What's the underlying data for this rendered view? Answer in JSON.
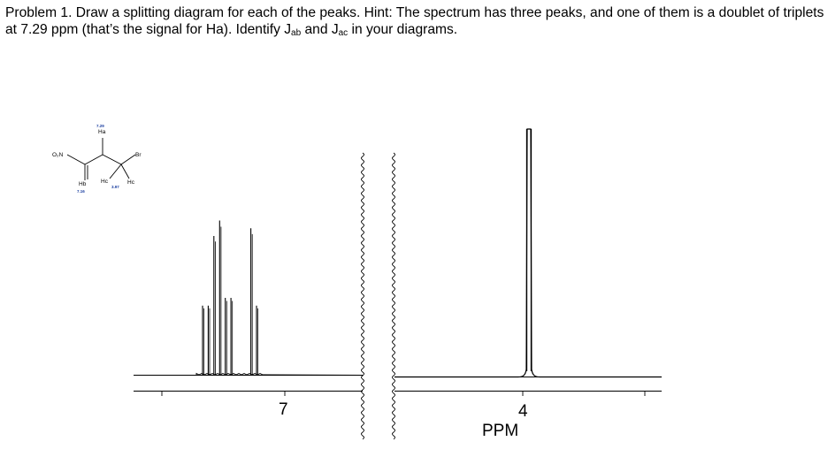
{
  "problem": {
    "text_before_jab": "Problem 1. Draw a splitting diagram for each of the peaks. Hint: The spectrum has three peaks, and one of them is a doublet of triplets at 7.29 ppm (that’s the signal for Ha). Identify J",
    "jab_sub": "ab",
    "text_between": " and J",
    "jac_sub": "ac",
    "text_after": " in your diagrams."
  },
  "molecule": {
    "nitro_label": "O₂N",
    "bromo_label": "Br",
    "ha_shift": "7.29",
    "ha_label": "Ha",
    "hb_label": "Hb",
    "hb_shift": "7.16",
    "hc_left_label": "Hc",
    "hc_right_label": "Hc",
    "hc_shift": "3.97"
  },
  "spectrum": {
    "axis_label_7": "7",
    "axis_label_4": "4",
    "axis_unit": "PPM",
    "aromatic_peaks_ppm": [
      7.35,
      7.33,
      7.31,
      7.29,
      7.27,
      7.25,
      7.18,
      7.16
    ],
    "aromatic_relative_heights": [
      0.45,
      0.45,
      0.9,
      1.0,
      0.5,
      0.5,
      0.95,
      0.45
    ],
    "aliphatic_peak_ppm": 3.97,
    "aliphatic_relative_height": 2.0
  }
}
